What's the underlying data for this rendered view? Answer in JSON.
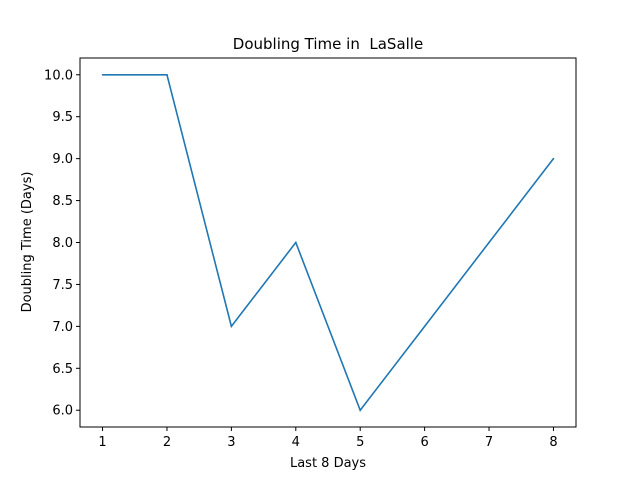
{
  "chart_data": {
    "type": "line",
    "title": "Doubling Time in  LaSalle",
    "xlabel": "Last 8 Days",
    "ylabel": "Doubling Time (Days)",
    "x": [
      1,
      2,
      3,
      4,
      5,
      6,
      7,
      8
    ],
    "series": [
      {
        "values": [
          10,
          10,
          7,
          8,
          6,
          7,
          8,
          9
        ],
        "color": "#1f77b4"
      }
    ],
    "xlim": [
      0.65,
      8.35
    ],
    "ylim": [
      5.8,
      10.2
    ],
    "xticks": [
      "1",
      "2",
      "3",
      "4",
      "5",
      "6",
      "7",
      "8"
    ],
    "yticks": [
      "6.0",
      "6.5",
      "7.0",
      "7.5",
      "8.0",
      "8.5",
      "9.0",
      "9.5",
      "10.0"
    ],
    "grid": false,
    "legend": "none"
  }
}
